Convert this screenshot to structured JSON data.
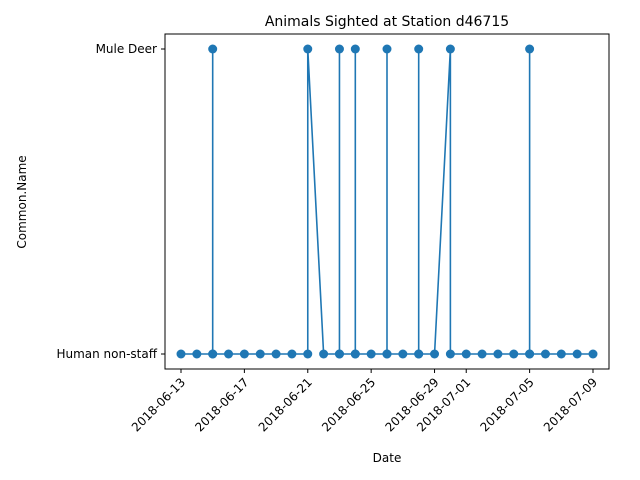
{
  "chart_data": {
    "type": "line",
    "title": "Animals Sighted at Station d46715",
    "xlabel": "Date",
    "ylabel": "Common.Name",
    "categories": [
      "Human non-staff",
      "Mule Deer"
    ],
    "x_ticks": [
      "2018-06-13",
      "2018-06-17",
      "2018-06-21",
      "2018-06-25",
      "2018-06-29",
      "2018-07-01",
      "2018-07-05",
      "2018-07-09"
    ],
    "xlim": [
      "2018-06-13",
      "2018-07-09"
    ],
    "marker": "circle",
    "color": "#1f77b4",
    "grid": false,
    "series": [
      {
        "points": [
          [
            "2018-06-13",
            "Human non-staff"
          ],
          [
            "2018-06-14",
            "Human non-staff"
          ],
          [
            "2018-06-15",
            "Human non-staff"
          ],
          [
            "2018-06-15",
            "Mule Deer"
          ],
          [
            "2018-06-15",
            "Human non-staff"
          ],
          [
            "2018-06-16",
            "Human non-staff"
          ],
          [
            "2018-06-17",
            "Human non-staff"
          ],
          [
            "2018-06-18",
            "Human non-staff"
          ],
          [
            "2018-06-19",
            "Human non-staff"
          ],
          [
            "2018-06-20",
            "Human non-staff"
          ],
          [
            "2018-06-21",
            "Human non-staff"
          ],
          [
            "2018-06-21",
            "Mule Deer"
          ],
          [
            "2018-06-22",
            "Human non-staff"
          ],
          [
            "2018-06-23",
            "Human non-staff"
          ],
          [
            "2018-06-23",
            "Mule Deer"
          ],
          [
            "2018-06-23",
            "Human non-staff"
          ],
          [
            "2018-06-24",
            "Human non-staff"
          ],
          [
            "2018-06-24",
            "Mule Deer"
          ],
          [
            "2018-06-24",
            "Human non-staff"
          ],
          [
            "2018-06-25",
            "Human non-staff"
          ],
          [
            "2018-06-26",
            "Human non-staff"
          ],
          [
            "2018-06-26",
            "Mule Deer"
          ],
          [
            "2018-06-26",
            "Human non-staff"
          ],
          [
            "2018-06-27",
            "Human non-staff"
          ],
          [
            "2018-06-28",
            "Human non-staff"
          ],
          [
            "2018-06-28",
            "Mule Deer"
          ],
          [
            "2018-06-28",
            "Human non-staff"
          ],
          [
            "2018-06-29",
            "Human non-staff"
          ],
          [
            "2018-06-30",
            "Mule Deer"
          ],
          [
            "2018-06-30",
            "Human non-staff"
          ],
          [
            "2018-07-01",
            "Human non-staff"
          ],
          [
            "2018-07-02",
            "Human non-staff"
          ],
          [
            "2018-07-03",
            "Human non-staff"
          ],
          [
            "2018-07-04",
            "Human non-staff"
          ],
          [
            "2018-07-05",
            "Human non-staff"
          ],
          [
            "2018-07-05",
            "Mule Deer"
          ],
          [
            "2018-07-05",
            "Human non-staff"
          ],
          [
            "2018-07-06",
            "Human non-staff"
          ],
          [
            "2018-07-07",
            "Human non-staff"
          ],
          [
            "2018-07-08",
            "Human non-staff"
          ],
          [
            "2018-07-09",
            "Human non-staff"
          ]
        ]
      }
    ]
  }
}
